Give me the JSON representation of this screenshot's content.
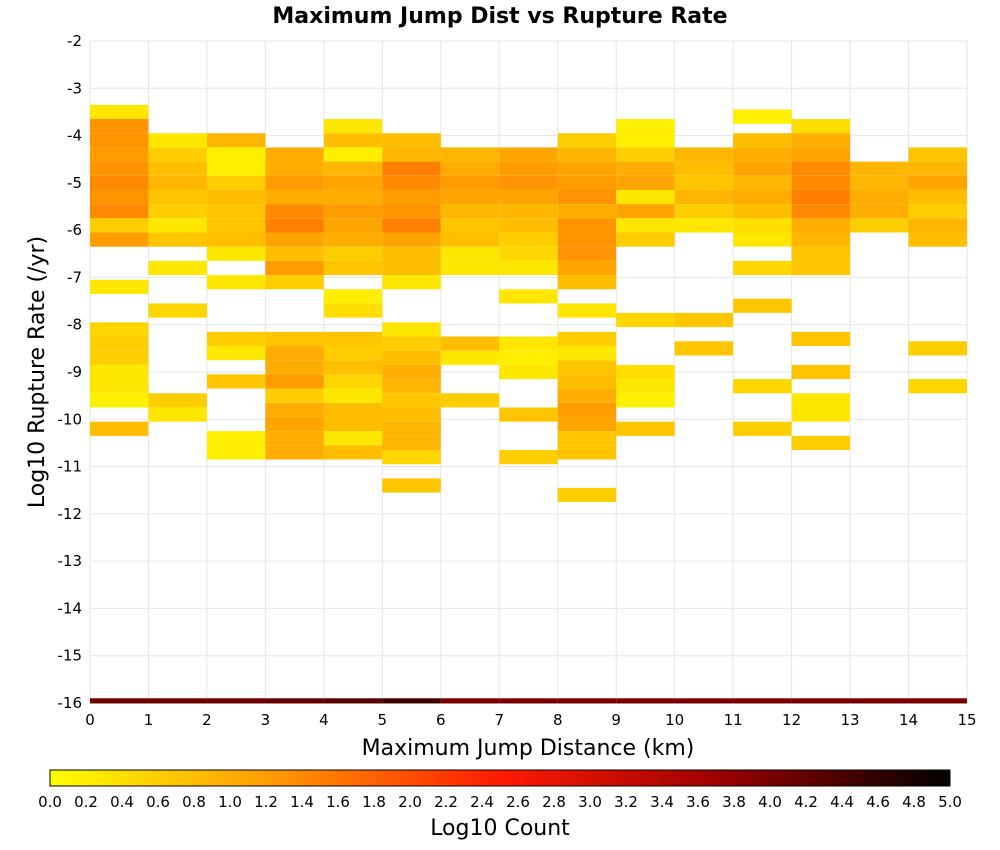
{
  "chart_data": {
    "type": "heatmap",
    "title": "Maximum Jump Dist vs Rupture Rate",
    "xlabel": "Maximum Jump Distance (km)",
    "ylabel": "Log10 Rupture Rate (/yr)",
    "xlim": [
      0,
      15
    ],
    "ylim": [
      -16,
      -2
    ],
    "x_ticks": [
      "0",
      "1",
      "2",
      "3",
      "4",
      "5",
      "6",
      "7",
      "8",
      "9",
      "10",
      "11",
      "12",
      "13",
      "14",
      "15"
    ],
    "y_ticks": [
      "-2",
      "-3",
      "-4",
      "-5",
      "-6",
      "-7",
      "-8",
      "-9",
      "-10",
      "-11",
      "-12",
      "-13",
      "-14",
      "-15",
      "-16"
    ],
    "grid": true,
    "bin": {
      "x_width": 1,
      "y_height": 0.3
    },
    "colorbar": {
      "label": "Log10 Count",
      "min": 0.0,
      "max": 5.0,
      "ticks": [
        "0.0",
        "0.2",
        "0.4",
        "0.6",
        "0.8",
        "1.0",
        "1.2",
        "1.4",
        "1.6",
        "1.8",
        "2.0",
        "2.2",
        "2.4",
        "2.6",
        "2.8",
        "3.0",
        "3.2",
        "3.4",
        "3.6",
        "3.8",
        "4.0",
        "4.2",
        "4.4",
        "4.6",
        "4.8",
        "5.0"
      ],
      "colors": [
        "#ffff00",
        "#ff9900",
        "#ff1a00",
        "#990000",
        "#000000"
      ]
    },
    "total_row": {
      "y": -16,
      "values": [
        4.1,
        4.1,
        4.1,
        4.2,
        4.3,
        4.5,
        4.0,
        4.0,
        4.0,
        4.0,
        4.0,
        4.0,
        4.0,
        4.0,
        4.0
      ]
    },
    "cells": [
      [
        0,
        -3.5,
        0.3
      ],
      [
        0,
        -3.8,
        1.3
      ],
      [
        0,
        -4.1,
        1.3
      ],
      [
        0,
        -4.4,
        1.2
      ],
      [
        0,
        -4.7,
        1.3
      ],
      [
        0,
        -5.0,
        1.4
      ],
      [
        0,
        -5.3,
        1.3
      ],
      [
        0,
        -5.6,
        1.4
      ],
      [
        0,
        -5.9,
        0.6
      ],
      [
        0,
        -6.2,
        1.2
      ],
      [
        0,
        -7.2,
        0.3
      ],
      [
        0,
        -8.1,
        0.5
      ],
      [
        0,
        -8.4,
        0.6
      ],
      [
        0,
        -8.7,
        0.6
      ],
      [
        0,
        -9.0,
        0.3
      ],
      [
        0,
        -9.3,
        0.3
      ],
      [
        0,
        -9.6,
        0.2
      ],
      [
        0,
        -10.2,
        0.8
      ],
      [
        1,
        -4.1,
        0.3
      ],
      [
        1,
        -4.4,
        0.6
      ],
      [
        1,
        -4.7,
        0.8
      ],
      [
        1,
        -5.0,
        0.9
      ],
      [
        1,
        -5.3,
        0.7
      ],
      [
        1,
        -5.6,
        0.6
      ],
      [
        1,
        -5.9,
        0.3
      ],
      [
        1,
        -6.2,
        0.7
      ],
      [
        1,
        -6.8,
        0.3
      ],
      [
        1,
        -7.7,
        0.5
      ],
      [
        1,
        -9.6,
        0.6
      ],
      [
        1,
        -9.9,
        0.3
      ],
      [
        2,
        -4.1,
        0.9
      ],
      [
        2,
        -4.4,
        0.2
      ],
      [
        2,
        -4.7,
        0.2
      ],
      [
        2,
        -5.0,
        0.6
      ],
      [
        2,
        -5.3,
        0.8
      ],
      [
        2,
        -5.6,
        0.7
      ],
      [
        2,
        -5.9,
        0.7
      ],
      [
        2,
        -6.2,
        0.8
      ],
      [
        2,
        -6.5,
        0.3
      ],
      [
        2,
        -7.1,
        0.3
      ],
      [
        2,
        -8.3,
        0.6
      ],
      [
        2,
        -8.6,
        0.3
      ],
      [
        2,
        -9.2,
        0.7
      ],
      [
        2,
        -10.4,
        0.2
      ],
      [
        2,
        -10.7,
        0.2
      ],
      [
        3,
        -4.4,
        1.0
      ],
      [
        3,
        -4.7,
        1.0
      ],
      [
        3,
        -5.0,
        1.2
      ],
      [
        3,
        -5.3,
        1.0
      ],
      [
        3,
        -5.6,
        1.4
      ],
      [
        3,
        -5.9,
        1.5
      ],
      [
        3,
        -6.2,
        1.1
      ],
      [
        3,
        -6.5,
        0.8
      ],
      [
        3,
        -6.8,
        1.2
      ],
      [
        3,
        -7.1,
        0.6
      ],
      [
        3,
        -8.3,
        0.7
      ],
      [
        3,
        -8.6,
        1.0
      ],
      [
        3,
        -8.9,
        1.0
      ],
      [
        3,
        -9.2,
        1.2
      ],
      [
        3,
        -9.5,
        0.6
      ],
      [
        3,
        -9.8,
        1.0
      ],
      [
        3,
        -10.1,
        1.1
      ],
      [
        3,
        -10.4,
        1.0
      ],
      [
        3,
        -10.7,
        1.0
      ],
      [
        4,
        -3.8,
        0.3
      ],
      [
        4,
        -4.1,
        0.8
      ],
      [
        4,
        -4.4,
        0.2
      ],
      [
        4,
        -4.7,
        0.9
      ],
      [
        4,
        -5.0,
        1.1
      ],
      [
        4,
        -5.3,
        1.0
      ],
      [
        4,
        -5.6,
        1.2
      ],
      [
        4,
        -5.9,
        1.1
      ],
      [
        4,
        -6.2,
        1.0
      ],
      [
        4,
        -6.5,
        0.6
      ],
      [
        4,
        -6.8,
        0.7
      ],
      [
        4,
        -7.7,
        0.4
      ],
      [
        4,
        -7.4,
        0.2
      ],
      [
        4,
        -8.3,
        0.7
      ],
      [
        4,
        -8.6,
        0.6
      ],
      [
        4,
        -8.9,
        0.8
      ],
      [
        4,
        -9.2,
        0.5
      ],
      [
        4,
        -9.5,
        0.3
      ],
      [
        4,
        -9.8,
        0.8
      ],
      [
        4,
        -10.1,
        0.8
      ],
      [
        4,
        -10.4,
        0.3
      ],
      [
        4,
        -10.7,
        0.8
      ],
      [
        5,
        -4.1,
        0.8
      ],
      [
        5,
        -4.4,
        0.9
      ],
      [
        5,
        -4.7,
        1.5
      ],
      [
        5,
        -5.0,
        1.4
      ],
      [
        5,
        -5.3,
        1.2
      ],
      [
        5,
        -5.6,
        1.3
      ],
      [
        5,
        -5.9,
        1.5
      ],
      [
        5,
        -6.2,
        1.1
      ],
      [
        5,
        -6.5,
        0.8
      ],
      [
        5,
        -6.8,
        0.8
      ],
      [
        5,
        -7.1,
        0.3
      ],
      [
        5,
        -8.1,
        0.3
      ],
      [
        5,
        -8.4,
        0.6
      ],
      [
        5,
        -8.7,
        0.8
      ],
      [
        5,
        -9.0,
        1.0
      ],
      [
        5,
        -9.3,
        0.9
      ],
      [
        5,
        -9.6,
        0.7
      ],
      [
        5,
        -9.9,
        0.8
      ],
      [
        5,
        -10.2,
        0.9
      ],
      [
        5,
        -10.5,
        0.9
      ],
      [
        5,
        -10.8,
        0.5
      ],
      [
        5,
        -11.4,
        0.7
      ],
      [
        6,
        -4.4,
        0.9
      ],
      [
        6,
        -4.7,
        1.0
      ],
      [
        6,
        -5.0,
        1.2
      ],
      [
        6,
        -5.3,
        1.1
      ],
      [
        6,
        -5.6,
        0.9
      ],
      [
        6,
        -5.9,
        0.7
      ],
      [
        6,
        -6.2,
        0.8
      ],
      [
        6,
        -6.5,
        0.3
      ],
      [
        6,
        -6.8,
        0.3
      ],
      [
        6,
        -8.4,
        0.8
      ],
      [
        6,
        -8.7,
        0.3
      ],
      [
        6,
        -9.6,
        0.6
      ],
      [
        7,
        -4.4,
        1.1
      ],
      [
        7,
        -4.7,
        1.2
      ],
      [
        7,
        -5.0,
        1.3
      ],
      [
        7,
        -5.3,
        1.1
      ],
      [
        7,
        -5.6,
        0.9
      ],
      [
        7,
        -5.9,
        0.8
      ],
      [
        7,
        -6.2,
        0.6
      ],
      [
        7,
        -6.5,
        0.5
      ],
      [
        7,
        -6.8,
        0.3
      ],
      [
        7,
        -7.4,
        0.3
      ],
      [
        7,
        -8.4,
        0.3
      ],
      [
        7,
        -8.7,
        0.2
      ],
      [
        7,
        -9.0,
        0.3
      ],
      [
        7,
        -9.9,
        0.7
      ],
      [
        7,
        -10.8,
        0.6
      ],
      [
        8,
        -4.1,
        0.6
      ],
      [
        8,
        -4.4,
        0.9
      ],
      [
        8,
        -4.7,
        1.1
      ],
      [
        8,
        -5.0,
        1.2
      ],
      [
        8,
        -5.3,
        1.3
      ],
      [
        8,
        -5.6,
        1.0
      ],
      [
        8,
        -5.9,
        1.3
      ],
      [
        8,
        -6.2,
        1.3
      ],
      [
        8,
        -6.5,
        1.3
      ],
      [
        8,
        -6.8,
        1.1
      ],
      [
        8,
        -7.1,
        0.8
      ],
      [
        8,
        -7.7,
        0.3
      ],
      [
        8,
        -8.3,
        0.6
      ],
      [
        8,
        -8.6,
        0.3
      ],
      [
        8,
        -8.9,
        0.7
      ],
      [
        8,
        -9.2,
        0.8
      ],
      [
        8,
        -9.5,
        1.0
      ],
      [
        8,
        -9.8,
        1.2
      ],
      [
        8,
        -10.1,
        1.1
      ],
      [
        8,
        -10.4,
        0.7
      ],
      [
        8,
        -10.7,
        0.7
      ],
      [
        8,
        -11.6,
        0.6
      ],
      [
        9,
        -3.8,
        0.2
      ],
      [
        9,
        -4.1,
        0.2
      ],
      [
        9,
        -4.4,
        0.6
      ],
      [
        9,
        -4.7,
        1.0
      ],
      [
        9,
        -5.0,
        1.1
      ],
      [
        9,
        -5.3,
        0.3
      ],
      [
        9,
        -5.6,
        1.1
      ],
      [
        9,
        -5.9,
        0.3
      ],
      [
        9,
        -6.2,
        0.6
      ],
      [
        9,
        -7.9,
        0.5
      ],
      [
        9,
        -9.0,
        0.4
      ],
      [
        9,
        -9.3,
        0.3
      ],
      [
        9,
        -9.6,
        0.2
      ],
      [
        9,
        -10.2,
        0.7
      ],
      [
        10,
        -4.4,
        0.9
      ],
      [
        10,
        -4.7,
        0.8
      ],
      [
        10,
        -5.0,
        0.7
      ],
      [
        10,
        -5.3,
        0.9
      ],
      [
        10,
        -5.6,
        0.6
      ],
      [
        10,
        -5.9,
        0.3
      ],
      [
        10,
        -7.9,
        0.7
      ],
      [
        10,
        -8.5,
        0.7
      ],
      [
        11,
        -3.6,
        0.2
      ],
      [
        11,
        -4.1,
        0.8
      ],
      [
        11,
        -4.4,
        1.0
      ],
      [
        11,
        -4.7,
        1.1
      ],
      [
        11,
        -5.0,
        0.9
      ],
      [
        11,
        -5.3,
        1.0
      ],
      [
        11,
        -5.6,
        0.8
      ],
      [
        11,
        -5.9,
        0.4
      ],
      [
        11,
        -6.2,
        0.3
      ],
      [
        11,
        -6.8,
        0.5
      ],
      [
        11,
        -7.6,
        0.7
      ],
      [
        11,
        -9.3,
        0.5
      ],
      [
        11,
        -10.2,
        0.6
      ],
      [
        12,
        -3.8,
        0.4
      ],
      [
        12,
        -4.1,
        1.0
      ],
      [
        12,
        -4.4,
        1.1
      ],
      [
        12,
        -4.7,
        1.4
      ],
      [
        12,
        -5.0,
        1.4
      ],
      [
        12,
        -5.3,
        1.5
      ],
      [
        12,
        -5.6,
        1.4
      ],
      [
        12,
        -5.9,
        1.0
      ],
      [
        12,
        -6.2,
        0.9
      ],
      [
        12,
        -6.5,
        0.7
      ],
      [
        12,
        -6.8,
        0.7
      ],
      [
        12,
        -8.3,
        0.7
      ],
      [
        12,
        -9.0,
        0.7
      ],
      [
        12,
        -9.6,
        0.3
      ],
      [
        12,
        -9.9,
        0.3
      ],
      [
        12,
        -10.5,
        0.6
      ],
      [
        13,
        -4.7,
        0.9
      ],
      [
        13,
        -5.0,
        0.9
      ],
      [
        13,
        -5.3,
        1.0
      ],
      [
        13,
        -5.6,
        1.0
      ],
      [
        13,
        -5.9,
        0.6
      ],
      [
        14,
        -4.4,
        0.7
      ],
      [
        14,
        -4.7,
        0.9
      ],
      [
        14,
        -5.0,
        1.1
      ],
      [
        14,
        -5.3,
        0.8
      ],
      [
        14,
        -5.6,
        0.6
      ],
      [
        14,
        -5.9,
        0.9
      ],
      [
        14,
        -6.2,
        0.8
      ],
      [
        14,
        -8.5,
        0.6
      ],
      [
        14,
        -9.3,
        0.5
      ]
    ]
  }
}
